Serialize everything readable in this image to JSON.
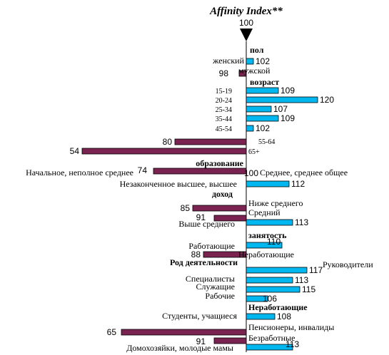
{
  "chart_data": {
    "type": "bar",
    "orientation": "horizontal",
    "title": "Affinity Index**",
    "baseline": 100,
    "baseline_label": "100",
    "colors": {
      "above": "#00b7f0",
      "below": "#7a2350"
    },
    "sections": [
      {
        "header": "пол",
        "items": [
          {
            "label": "женский",
            "value": 102
          },
          {
            "label": "мужской",
            "value": 98
          }
        ]
      },
      {
        "header": "возраст",
        "items": [
          {
            "label": "15-19",
            "value": 109
          },
          {
            "label": "20-24",
            "value": 120
          },
          {
            "label": "25-34",
            "value": 107
          },
          {
            "label": "35-44",
            "value": 109
          },
          {
            "label": "45-54",
            "value": 102
          },
          {
            "label": "55-64",
            "value": 80
          },
          {
            "label": "65+",
            "value": 54
          }
        ]
      },
      {
        "header": "образование",
        "items": [
          {
            "label": "Начальное, неполное среднее",
            "value": 74
          },
          {
            "label": "Среднее, среднее общее",
            "value": 100
          },
          {
            "label": "Незаконченное высшее, высшее",
            "value": 112
          }
        ]
      },
      {
        "header": "доход",
        "items": [
          {
            "label": "Ниже среднего",
            "value": 85
          },
          {
            "label": "Средний",
            "value": 91
          },
          {
            "label": "Выше среднего",
            "value": 113
          }
        ]
      },
      {
        "header": "занятость",
        "items": [
          {
            "label": "Работающие",
            "value": 110
          },
          {
            "label": "Неработающие",
            "value": 88
          }
        ]
      },
      {
        "header": "Род деятельности",
        "items": [
          {
            "label": "Руководители",
            "value": 117
          },
          {
            "label": "Специалисты",
            "value": 113
          },
          {
            "label": "Служащие",
            "value": 115
          },
          {
            "label": "Рабочие",
            "value": 106
          }
        ]
      },
      {
        "header": "Неработающие",
        "items": [
          {
            "label": "Студенты, учащиеся",
            "value": 108
          },
          {
            "label": "Пенсионеры, инвалиды",
            "value": 65
          },
          {
            "label": "Безработные",
            "value": 91
          },
          {
            "label": "Домохозяйки, молодые мамы",
            "value": 113
          }
        ]
      }
    ]
  }
}
